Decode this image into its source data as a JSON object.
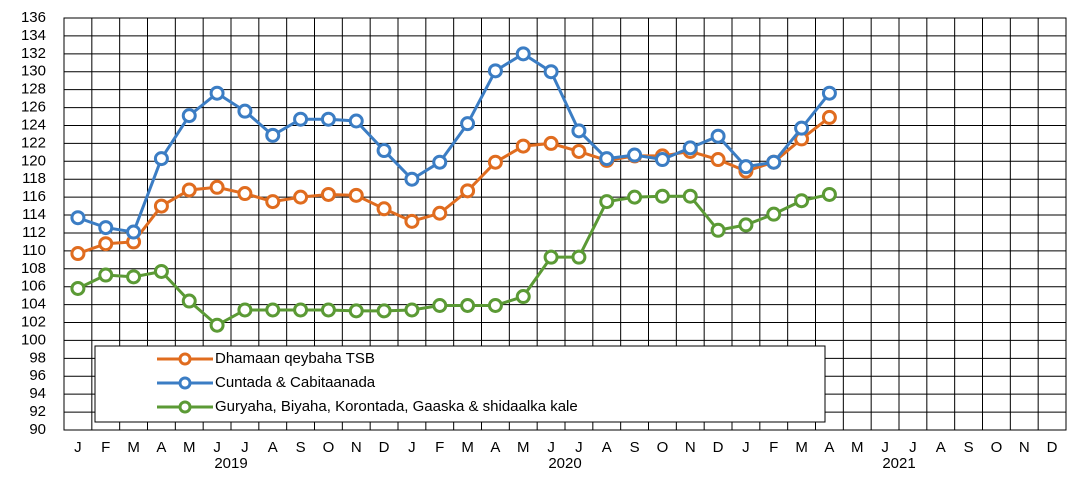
{
  "chart_data": {
    "type": "line",
    "categories": [
      "J",
      "F",
      "M",
      "A",
      "M",
      "J",
      "J",
      "A",
      "S",
      "O",
      "N",
      "D",
      "J",
      "F",
      "M",
      "A",
      "M",
      "J",
      "J",
      "A",
      "S",
      "O",
      "N",
      "D",
      "J",
      "F",
      "M",
      "A",
      "M",
      "J",
      "J",
      "A",
      "S",
      "O",
      "N",
      "D"
    ],
    "years": [
      "2019",
      "2020",
      "2021"
    ],
    "series": [
      {
        "name": "Dhamaan qeybaha TSB",
        "color": "#e06c1f",
        "values": [
          109.7,
          110.8,
          111,
          115,
          116.8,
          117.1,
          116.4,
          115.5,
          116,
          116.3,
          116.2,
          114.7,
          113.3,
          114.2,
          116.7,
          119.9,
          121.7,
          122,
          121.1,
          120.1,
          120.6,
          120.6,
          121.1,
          120.2,
          118.9,
          119.9,
          122.5,
          124.9,
          null,
          null,
          null,
          null,
          null,
          null,
          null,
          null
        ]
      },
      {
        "name": "Cuntada & Cabitaanada",
        "color": "#3b7dc4",
        "values": [
          113.7,
          112.6,
          112.1,
          120.3,
          125.1,
          127.6,
          125.6,
          122.9,
          124.7,
          124.7,
          124.5,
          121.2,
          118,
          119.9,
          124.2,
          130.1,
          132,
          130,
          123.4,
          120.3,
          120.7,
          120.2,
          121.5,
          122.8,
          119.4,
          119.9,
          123.7,
          127.6,
          null,
          null,
          null,
          null,
          null,
          null,
          null,
          null
        ]
      },
      {
        "name": "Guryaha, Biyaha, Korontada, Gaaska & shidaalka kale",
        "color": "#5b9a35",
        "values": [
          105.8,
          107.3,
          107.1,
          107.7,
          104.4,
          101.7,
          103.4,
          103.4,
          103.4,
          103.4,
          103.3,
          103.3,
          103.4,
          103.9,
          103.9,
          103.9,
          104.9,
          109.3,
          109.3,
          115.5,
          116,
          116.1,
          116.1,
          112.3,
          112.9,
          114.1,
          115.6,
          116.3,
          null,
          null,
          null,
          null,
          null,
          null,
          null,
          null
        ]
      }
    ],
    "ylim": [
      90,
      136
    ],
    "yticks": [
      90,
      92,
      94,
      96,
      98,
      100,
      102,
      104,
      106,
      108,
      110,
      112,
      114,
      116,
      118,
      120,
      122,
      124,
      126,
      128,
      130,
      132,
      134,
      136
    ],
    "grid": true
  }
}
